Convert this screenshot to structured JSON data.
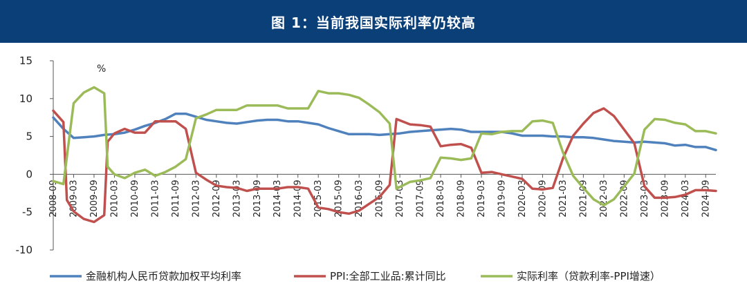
{
  "header": {
    "title": "图 1：当前我国实际利率仍较高"
  },
  "chart_data": {
    "type": "line",
    "title": "图 1：当前我国实际利率仍较高",
    "unit_label": "%",
    "ylim": [
      -10,
      15
    ],
    "y_ticks": [
      -10,
      -5,
      0,
      5,
      10,
      15
    ],
    "x_start": "2008-09",
    "x_end": "2024-12",
    "x_ticks": [
      "2008-09",
      "2009-03",
      "2009-09",
      "2010-03",
      "2010-09",
      "2011-03",
      "2011-09",
      "2012-03",
      "2012-09",
      "2013-03",
      "2013-09",
      "2014-03",
      "2014-09",
      "2015-03",
      "2015-09",
      "2016-03",
      "2016-09",
      "2017-03",
      "2017-09",
      "2018-03",
      "2018-09",
      "2019-03",
      "2019-09",
      "2020-03",
      "2020-09",
      "2021-03",
      "2021-09",
      "2022-03",
      "2022-09",
      "2023-03",
      "2023-09",
      "2024-03",
      "2024-09"
    ],
    "grid": false,
    "legend_position": "bottom",
    "series": [
      {
        "name": "金融机构人民币贷款加权平均利率",
        "color": "#4f81bd",
        "points": [
          [
            "2008-09",
            7.5
          ],
          [
            "2008-12",
            6.0
          ],
          [
            "2009-03",
            4.8
          ],
          [
            "2009-06",
            4.9
          ],
          [
            "2009-09",
            5.0
          ],
          [
            "2009-12",
            5.2
          ],
          [
            "2010-03",
            5.3
          ],
          [
            "2010-06",
            5.5
          ],
          [
            "2010-09",
            5.9
          ],
          [
            "2010-12",
            6.4
          ],
          [
            "2011-03",
            6.8
          ],
          [
            "2011-06",
            7.3
          ],
          [
            "2011-09",
            8.0
          ],
          [
            "2011-12",
            8.0
          ],
          [
            "2012-03",
            7.6
          ],
          [
            "2012-06",
            7.2
          ],
          [
            "2012-09",
            7.0
          ],
          [
            "2012-12",
            6.8
          ],
          [
            "2013-03",
            6.7
          ],
          [
            "2013-06",
            6.9
          ],
          [
            "2013-09",
            7.1
          ],
          [
            "2013-12",
            7.2
          ],
          [
            "2014-03",
            7.2
          ],
          [
            "2014-06",
            7.0
          ],
          [
            "2014-09",
            7.0
          ],
          [
            "2014-12",
            6.8
          ],
          [
            "2015-03",
            6.6
          ],
          [
            "2015-06",
            6.1
          ],
          [
            "2015-09",
            5.7
          ],
          [
            "2015-12",
            5.3
          ],
          [
            "2016-03",
            5.3
          ],
          [
            "2016-06",
            5.3
          ],
          [
            "2016-09",
            5.2
          ],
          [
            "2016-12",
            5.3
          ],
          [
            "2017-03",
            5.4
          ],
          [
            "2017-06",
            5.6
          ],
          [
            "2017-09",
            5.7
          ],
          [
            "2017-12",
            5.8
          ],
          [
            "2018-03",
            5.9
          ],
          [
            "2018-06",
            6.0
          ],
          [
            "2018-09",
            5.9
          ],
          [
            "2018-12",
            5.6
          ],
          [
            "2019-03",
            5.6
          ],
          [
            "2019-06",
            5.6
          ],
          [
            "2019-09",
            5.6
          ],
          [
            "2019-12",
            5.4
          ],
          [
            "2020-03",
            5.1
          ],
          [
            "2020-06",
            5.1
          ],
          [
            "2020-09",
            5.1
          ],
          [
            "2020-12",
            5.0
          ],
          [
            "2021-03",
            5.0
          ],
          [
            "2021-06",
            4.9
          ],
          [
            "2021-09",
            4.9
          ],
          [
            "2021-12",
            4.8
          ],
          [
            "2022-03",
            4.6
          ],
          [
            "2022-06",
            4.4
          ],
          [
            "2022-09",
            4.3
          ],
          [
            "2022-12",
            4.2
          ],
          [
            "2023-03",
            4.3
          ],
          [
            "2023-06",
            4.2
          ],
          [
            "2023-09",
            4.1
          ],
          [
            "2023-12",
            3.8
          ],
          [
            "2024-03",
            3.9
          ],
          [
            "2024-06",
            3.6
          ],
          [
            "2024-09",
            3.6
          ],
          [
            "2024-12",
            3.2
          ]
        ]
      },
      {
        "name": "PPI:全部工业品:累计同比",
        "color": "#c0504d",
        "points": [
          [
            "2008-09",
            8.4
          ],
          [
            "2008-12",
            6.9
          ],
          [
            "2009-01",
            -3.4
          ],
          [
            "2009-03",
            -4.9
          ],
          [
            "2009-06",
            -5.9
          ],
          [
            "2009-09",
            -6.3
          ],
          [
            "2009-12",
            -5.4
          ],
          [
            "2010-01",
            4.3
          ],
          [
            "2010-03",
            5.4
          ],
          [
            "2010-06",
            6.0
          ],
          [
            "2010-09",
            5.5
          ],
          [
            "2010-12",
            5.5
          ],
          [
            "2011-03",
            7.0
          ],
          [
            "2011-06",
            7.0
          ],
          [
            "2011-09",
            7.0
          ],
          [
            "2011-12",
            6.0
          ],
          [
            "2012-03",
            0.2
          ],
          [
            "2012-06",
            -0.7
          ],
          [
            "2012-09",
            -1.5
          ],
          [
            "2012-12",
            -1.7
          ],
          [
            "2013-03",
            -1.8
          ],
          [
            "2013-06",
            -2.2
          ],
          [
            "2013-09",
            -1.9
          ],
          [
            "2013-12",
            -1.9
          ],
          [
            "2014-03",
            -1.9
          ],
          [
            "2014-06",
            -1.7
          ],
          [
            "2014-09",
            -1.7
          ],
          [
            "2014-12",
            -1.9
          ],
          [
            "2015-03",
            -4.4
          ],
          [
            "2015-06",
            -4.6
          ],
          [
            "2015-09",
            -5.0
          ],
          [
            "2015-12",
            -5.2
          ],
          [
            "2016-03",
            -4.8
          ],
          [
            "2016-06",
            -3.9
          ],
          [
            "2016-09",
            -3.0
          ],
          [
            "2016-12",
            -1.4
          ],
          [
            "2017-02",
            7.3
          ],
          [
            "2017-06",
            6.6
          ],
          [
            "2017-09",
            6.5
          ],
          [
            "2017-12",
            6.3
          ],
          [
            "2018-03",
            3.7
          ],
          [
            "2018-06",
            3.9
          ],
          [
            "2018-09",
            4.0
          ],
          [
            "2018-12",
            3.5
          ],
          [
            "2019-03",
            0.2
          ],
          [
            "2019-06",
            0.3
          ],
          [
            "2019-09",
            0.0
          ],
          [
            "2019-12",
            -0.3
          ],
          [
            "2020-03",
            -0.6
          ],
          [
            "2020-06",
            -1.9
          ],
          [
            "2020-09",
            -2.0
          ],
          [
            "2020-12",
            -1.8
          ],
          [
            "2021-03",
            2.1
          ],
          [
            "2021-06",
            5.1
          ],
          [
            "2021-09",
            6.7
          ],
          [
            "2021-12",
            8.1
          ],
          [
            "2022-03",
            8.7
          ],
          [
            "2022-06",
            7.7
          ],
          [
            "2022-09",
            5.9
          ],
          [
            "2022-12",
            4.1
          ],
          [
            "2023-03",
            -1.6
          ],
          [
            "2023-06",
            -3.1
          ],
          [
            "2023-09",
            -3.1
          ],
          [
            "2023-12",
            -3.0
          ],
          [
            "2024-03",
            -2.7
          ],
          [
            "2024-06",
            -2.1
          ],
          [
            "2024-09",
            -2.1
          ],
          [
            "2024-12",
            -2.2
          ]
        ]
      },
      {
        "name": "实际利率（贷款利率-PPI增速）",
        "color": "#9bbb59",
        "points": [
          [
            "2008-09",
            -0.9
          ],
          [
            "2008-12",
            -1.3
          ],
          [
            "2009-03",
            9.4
          ],
          [
            "2009-06",
            10.8
          ],
          [
            "2009-09",
            11.5
          ],
          [
            "2009-12",
            10.7
          ],
          [
            "2010-01",
            1.0
          ],
          [
            "2010-03",
            0.0
          ],
          [
            "2010-06",
            -0.5
          ],
          [
            "2010-09",
            0.2
          ],
          [
            "2010-12",
            0.6
          ],
          [
            "2011-03",
            -0.2
          ],
          [
            "2011-06",
            0.3
          ],
          [
            "2011-09",
            1.0
          ],
          [
            "2011-12",
            2.0
          ],
          [
            "2012-03",
            7.4
          ],
          [
            "2012-06",
            7.9
          ],
          [
            "2012-09",
            8.5
          ],
          [
            "2012-12",
            8.5
          ],
          [
            "2013-03",
            8.5
          ],
          [
            "2013-06",
            9.1
          ],
          [
            "2013-09",
            9.1
          ],
          [
            "2013-12",
            9.1
          ],
          [
            "2014-03",
            9.1
          ],
          [
            "2014-06",
            8.7
          ],
          [
            "2014-09",
            8.7
          ],
          [
            "2014-12",
            8.7
          ],
          [
            "2015-03",
            11.0
          ],
          [
            "2015-06",
            10.7
          ],
          [
            "2015-09",
            10.7
          ],
          [
            "2015-12",
            10.5
          ],
          [
            "2016-03",
            10.1
          ],
          [
            "2016-06",
            9.2
          ],
          [
            "2016-09",
            8.2
          ],
          [
            "2016-12",
            6.7
          ],
          [
            "2017-02",
            -1.9
          ],
          [
            "2017-06",
            -1.0
          ],
          [
            "2017-09",
            -0.8
          ],
          [
            "2017-12",
            -0.5
          ],
          [
            "2018-03",
            2.2
          ],
          [
            "2018-06",
            2.1
          ],
          [
            "2018-09",
            1.9
          ],
          [
            "2018-12",
            2.1
          ],
          [
            "2019-03",
            5.4
          ],
          [
            "2019-06",
            5.3
          ],
          [
            "2019-09",
            5.6
          ],
          [
            "2019-12",
            5.7
          ],
          [
            "2020-03",
            5.7
          ],
          [
            "2020-06",
            7.0
          ],
          [
            "2020-09",
            7.1
          ],
          [
            "2020-12",
            6.8
          ],
          [
            "2021-03",
            2.9
          ],
          [
            "2021-06",
            -0.2
          ],
          [
            "2021-09",
            -1.8
          ],
          [
            "2021-12",
            -3.3
          ],
          [
            "2022-03",
            -4.1
          ],
          [
            "2022-06",
            -3.3
          ],
          [
            "2022-09",
            -1.6
          ],
          [
            "2022-12",
            0.1
          ],
          [
            "2023-03",
            5.9
          ],
          [
            "2023-06",
            7.3
          ],
          [
            "2023-09",
            7.2
          ],
          [
            "2023-12",
            6.8
          ],
          [
            "2024-03",
            6.6
          ],
          [
            "2024-06",
            5.7
          ],
          [
            "2024-09",
            5.7
          ],
          [
            "2024-12",
            5.4
          ]
        ]
      }
    ]
  }
}
